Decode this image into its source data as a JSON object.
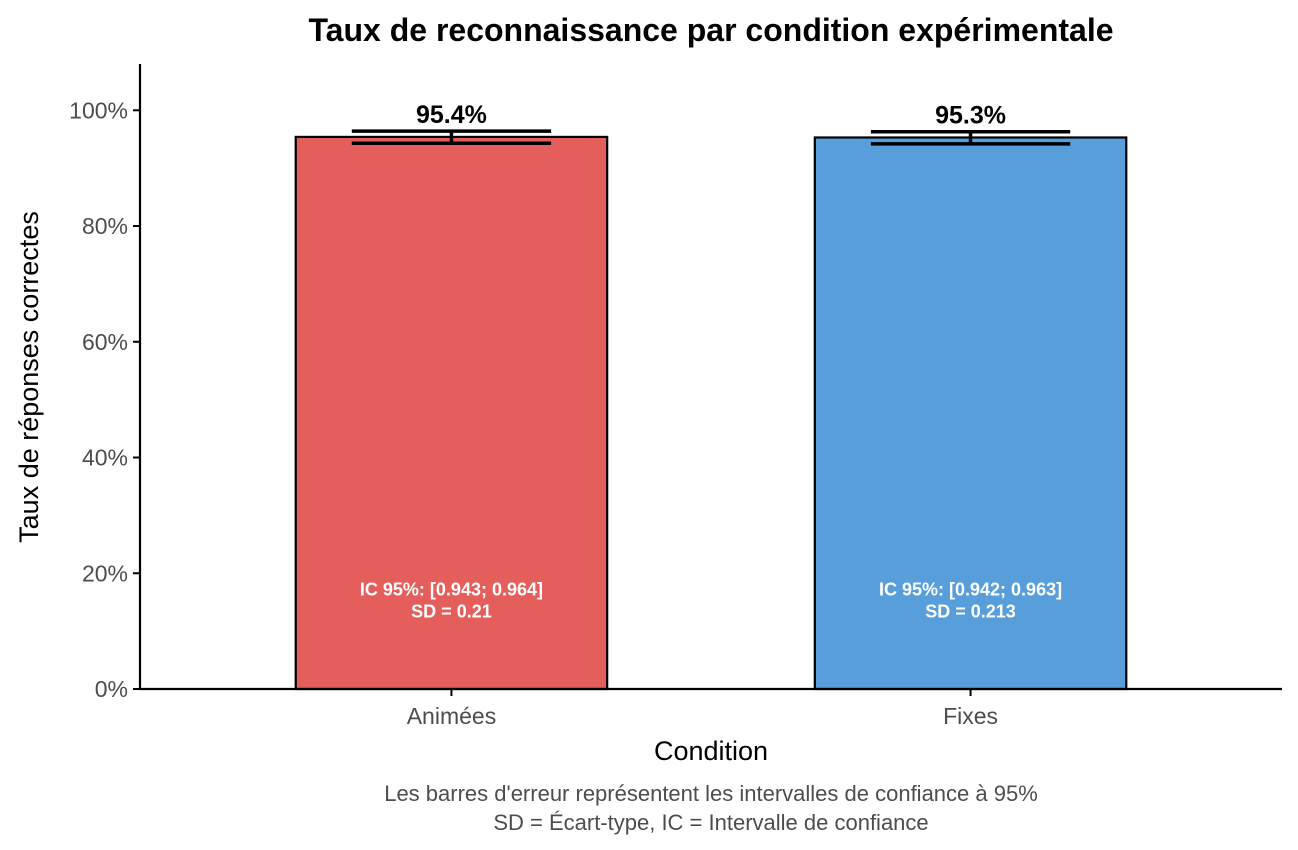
{
  "chart_data": {
    "type": "bar",
    "title": "Taux de reconnaissance par condition expérimentale",
    "xlabel": "Condition",
    "ylabel": "Taux de réponses correctes",
    "ylim": [
      0,
      1.08
    ],
    "yticks": [
      0,
      0.2,
      0.4,
      0.6,
      0.8,
      1.0
    ],
    "ytick_labels": [
      "0%",
      "20%",
      "40%",
      "60%",
      "80%",
      "100%"
    ],
    "categories": [
      "Animées",
      "Fixes"
    ],
    "values": [
      0.954,
      0.953
    ],
    "value_labels": [
      "95.4%",
      "95.3%"
    ],
    "ci_low": [
      0.943,
      0.942
    ],
    "ci_high": [
      0.964,
      0.963
    ],
    "ci_labels": [
      "IC 95%: [0.943; 0.964]",
      "IC 95%: [0.942; 0.963]"
    ],
    "sd_labels": [
      "SD = 0.21",
      "SD = 0.213"
    ],
    "colors": [
      "#E45F5B",
      "#579EDB"
    ],
    "grid": false,
    "legend": "none",
    "caption": [
      "Les barres d'erreur représentent les intervalles de confiance à 95%",
      "SD = Écart-type, IC = Intervalle de confiance"
    ]
  }
}
